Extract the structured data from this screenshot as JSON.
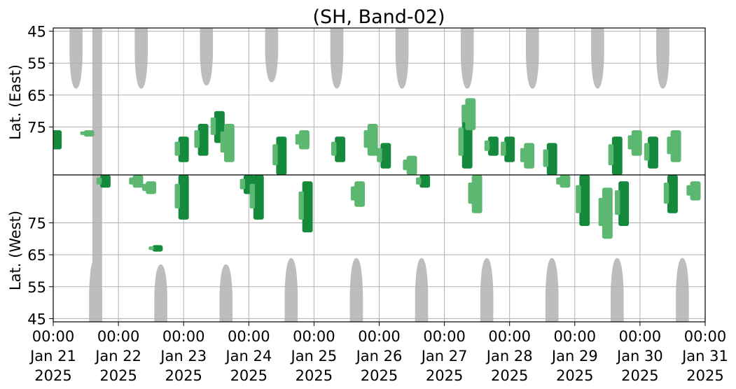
{
  "chart_data": {
    "type": "heatmap",
    "title": "(SH, Band-02)",
    "ylabel_top": "Lat. (East)",
    "ylabel_bottom": "Lat. (West)",
    "x_range": [
      "2025-01-21T00:00",
      "2025-01-31T00:00"
    ],
    "x_ticks": [
      {
        "time": "00:00",
        "date": "Jan 21",
        "year": "2025"
      },
      {
        "time": "00:00",
        "date": "Jan 22",
        "year": "2025"
      },
      {
        "time": "00:00",
        "date": "Jan 23",
        "year": "2025"
      },
      {
        "time": "00:00",
        "date": "Jan 24",
        "year": "2025"
      },
      {
        "time": "00:00",
        "date": "Jan 25",
        "year": "2025"
      },
      {
        "time": "00:00",
        "date": "Jan 26",
        "year": "2025"
      },
      {
        "time": "00:00",
        "date": "Jan 27",
        "year": "2025"
      },
      {
        "time": "00:00",
        "date": "Jan 28",
        "year": "2025"
      },
      {
        "time": "00:00",
        "date": "Jan 29",
        "year": "2025"
      },
      {
        "time": "00:00",
        "date": "Jan 30",
        "year": "2025"
      },
      {
        "time": "00:00",
        "date": "Jan 31",
        "year": "2025"
      }
    ],
    "y_ticks_east": [
      "45",
      "55",
      "65",
      "75"
    ],
    "y_ticks_west": [
      "75",
      "65",
      "55",
      "45"
    ],
    "y_tick_values_east": [
      45,
      55,
      65,
      75
    ],
    "y_tick_values_west": [
      75,
      65,
      55,
      45
    ],
    "center_line": "90",
    "grid": true,
    "colors": {
      "no_data": "#bdbdbd",
      "weak": "#5cb870",
      "strong": "#168a3c",
      "center_line": "#000000",
      "grid": "#b0b0b0"
    },
    "gray_lobes_east": [
      {
        "start_day": 0.25,
        "end_day": 0.45,
        "min_lat": 63
      },
      {
        "start_day": 1.25,
        "end_day": 1.45,
        "min_lat": 63
      },
      {
        "start_day": 2.25,
        "end_day": 2.45,
        "min_lat": 62
      },
      {
        "start_day": 3.25,
        "end_day": 3.45,
        "min_lat": 61
      },
      {
        "start_day": 4.25,
        "end_day": 4.45,
        "min_lat": 63
      },
      {
        "start_day": 5.25,
        "end_day": 5.45,
        "min_lat": 63
      },
      {
        "start_day": 6.25,
        "end_day": 6.45,
        "min_lat": 63
      },
      {
        "start_day": 7.25,
        "end_day": 7.45,
        "min_lat": 63
      },
      {
        "start_day": 8.25,
        "end_day": 8.45,
        "min_lat": 63
      },
      {
        "start_day": 9.25,
        "end_day": 9.45,
        "min_lat": 63
      }
    ],
    "gray_lobes_west": [
      {
        "start_day": 0.55,
        "end_day": 0.75,
        "min_lat": 64
      },
      {
        "start_day": 1.55,
        "end_day": 1.75,
        "min_lat": 62
      },
      {
        "start_day": 2.55,
        "end_day": 2.75,
        "min_lat": 62
      },
      {
        "start_day": 3.55,
        "end_day": 3.75,
        "min_lat": 64
      },
      {
        "start_day": 4.55,
        "end_day": 4.75,
        "min_lat": 64
      },
      {
        "start_day": 5.55,
        "end_day": 5.75,
        "min_lat": 64
      },
      {
        "start_day": 6.55,
        "end_day": 6.75,
        "min_lat": 64
      },
      {
        "start_day": 7.55,
        "end_day": 7.75,
        "min_lat": 64
      },
      {
        "start_day": 8.55,
        "end_day": 8.75,
        "min_lat": 64
      },
      {
        "start_day": 9.55,
        "end_day": 9.75,
        "min_lat": 64
      }
    ],
    "gray_full_column": {
      "start_day": 0.6,
      "end_day": 0.75
    },
    "echo_patches": [
      {
        "day": 0.05,
        "side": "east",
        "lat_from": 82,
        "lat_to": 76,
        "level": "strong"
      },
      {
        "day": 0.55,
        "side": "east",
        "lat_from": 78,
        "lat_to": 76,
        "level": "weak"
      },
      {
        "day": 0.8,
        "side": "west",
        "lat_from": 90,
        "lat_to": 86,
        "level": "strong"
      },
      {
        "day": 1.3,
        "side": "west",
        "lat_from": 90,
        "lat_to": 86,
        "level": "weak"
      },
      {
        "day": 1.5,
        "side": "west",
        "lat_from": 88,
        "lat_to": 84,
        "level": "weak"
      },
      {
        "day": 1.6,
        "side": "west",
        "lat_from": 68,
        "lat_to": 66,
        "level": "strong"
      },
      {
        "day": 2.0,
        "side": "east",
        "lat_from": 86,
        "lat_to": 78,
        "level": "strong"
      },
      {
        "day": 2.3,
        "side": "east",
        "lat_from": 84,
        "lat_to": 74,
        "level": "strong"
      },
      {
        "day": 2.0,
        "side": "west",
        "lat_from": 90,
        "lat_to": 76,
        "level": "strong"
      },
      {
        "day": 2.55,
        "side": "east",
        "lat_from": 80,
        "lat_to": 70,
        "level": "strong"
      },
      {
        "day": 2.7,
        "side": "east",
        "lat_from": 86,
        "lat_to": 74,
        "level": "weak"
      },
      {
        "day": 3.0,
        "side": "west",
        "lat_from": 90,
        "lat_to": 84,
        "level": "strong"
      },
      {
        "day": 3.15,
        "side": "west",
        "lat_from": 90,
        "lat_to": 76,
        "level": "strong"
      },
      {
        "day": 3.5,
        "side": "east",
        "lat_from": 90,
        "lat_to": 78,
        "level": "strong"
      },
      {
        "day": 3.9,
        "side": "west",
        "lat_from": 88,
        "lat_to": 72,
        "level": "strong"
      },
      {
        "day": 3.85,
        "side": "east",
        "lat_from": 82,
        "lat_to": 76,
        "level": "weak"
      },
      {
        "day": 4.4,
        "side": "east",
        "lat_from": 86,
        "lat_to": 78,
        "level": "strong"
      },
      {
        "day": 4.7,
        "side": "west",
        "lat_from": 88,
        "lat_to": 80,
        "level": "weak"
      },
      {
        "day": 4.9,
        "side": "east",
        "lat_from": 84,
        "lat_to": 74,
        "level": "weak"
      },
      {
        "day": 5.1,
        "side": "east",
        "lat_from": 88,
        "lat_to": 80,
        "level": "strong"
      },
      {
        "day": 5.5,
        "side": "east",
        "lat_from": 90,
        "lat_to": 84,
        "level": "weak"
      },
      {
        "day": 5.7,
        "side": "west",
        "lat_from": 90,
        "lat_to": 86,
        "level": "strong"
      },
      {
        "day": 6.35,
        "side": "east",
        "lat_from": 88,
        "lat_to": 72,
        "level": "strong"
      },
      {
        "day": 6.4,
        "side": "east",
        "lat_from": 76,
        "lat_to": 66,
        "level": "weak"
      },
      {
        "day": 6.5,
        "side": "west",
        "lat_from": 90,
        "lat_to": 78,
        "level": "weak"
      },
      {
        "day": 6.75,
        "side": "east",
        "lat_from": 84,
        "lat_to": 78,
        "level": "strong"
      },
      {
        "day": 7.0,
        "side": "east",
        "lat_from": 86,
        "lat_to": 78,
        "level": "strong"
      },
      {
        "day": 7.3,
        "side": "east",
        "lat_from": 88,
        "lat_to": 80,
        "level": "weak"
      },
      {
        "day": 7.65,
        "side": "east",
        "lat_from": 90,
        "lat_to": 80,
        "level": "strong"
      },
      {
        "day": 7.85,
        "side": "west",
        "lat_from": 90,
        "lat_to": 86,
        "level": "weak"
      },
      {
        "day": 8.15,
        "side": "west",
        "lat_from": 90,
        "lat_to": 74,
        "level": "strong"
      },
      {
        "day": 8.5,
        "side": "west",
        "lat_from": 86,
        "lat_to": 70,
        "level": "weak"
      },
      {
        "day": 8.65,
        "side": "east",
        "lat_from": 90,
        "lat_to": 78,
        "level": "strong"
      },
      {
        "day": 8.75,
        "side": "west",
        "lat_from": 88,
        "lat_to": 74,
        "level": "strong"
      },
      {
        "day": 8.95,
        "side": "east",
        "lat_from": 84,
        "lat_to": 76,
        "level": "weak"
      },
      {
        "day": 9.2,
        "side": "east",
        "lat_from": 88,
        "lat_to": 78,
        "level": "strong"
      },
      {
        "day": 9.5,
        "side": "west",
        "lat_from": 90,
        "lat_to": 78,
        "level": "strong"
      },
      {
        "day": 9.55,
        "side": "east",
        "lat_from": 86,
        "lat_to": 76,
        "level": "weak"
      },
      {
        "day": 9.85,
        "side": "west",
        "lat_from": 88,
        "lat_to": 82,
        "level": "weak"
      }
    ]
  }
}
